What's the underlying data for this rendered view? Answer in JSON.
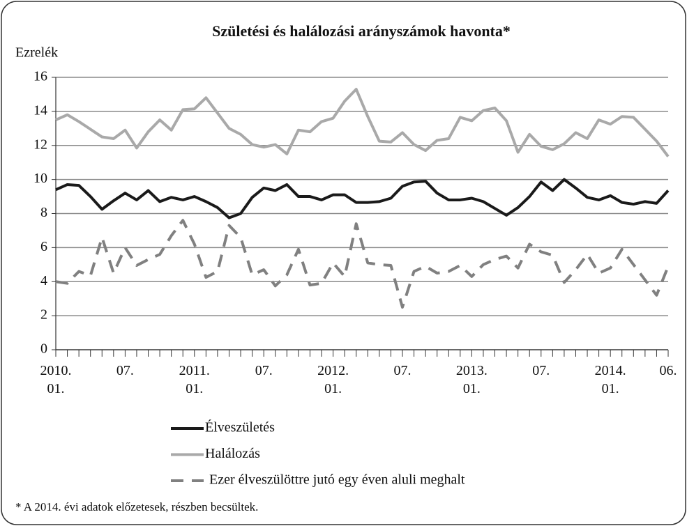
{
  "chart_data": {
    "type": "line",
    "title": "Születési és halálozási arányszámok havonta*",
    "y_label": "Ezrelék",
    "footnote": "* A 2014.  évi adatok előzetesek, részben becsültek.",
    "categories": [
      "2010.\n01.",
      null,
      null,
      null,
      null,
      null,
      "07.",
      null,
      null,
      null,
      null,
      null,
      "2011.\n01.",
      null,
      null,
      null,
      null,
      null,
      "07.",
      null,
      null,
      null,
      null,
      null,
      "2012.\n01.",
      null,
      null,
      null,
      null,
      null,
      "07.",
      null,
      null,
      null,
      null,
      null,
      "2013.\n01.",
      null,
      null,
      null,
      null,
      null,
      "07.",
      null,
      null,
      null,
      null,
      null,
      "2014.\n01.",
      null,
      null,
      null,
      null,
      "06."
    ],
    "series": [
      {
        "name": "Élveszületés",
        "color": "#1a1a1a",
        "dashed": false,
        "values": [
          9.4,
          9.7,
          9.65,
          9.0,
          8.25,
          8.75,
          9.2,
          8.8,
          9.35,
          8.7,
          8.95,
          8.8,
          9.0,
          8.7,
          8.35,
          7.75,
          8.0,
          8.95,
          9.5,
          9.35,
          9.7,
          9.0,
          9.0,
          8.8,
          9.1,
          9.1,
          8.65,
          8.65,
          8.7,
          8.9,
          9.6,
          9.85,
          9.9,
          9.2,
          8.8,
          8.8,
          8.9,
          8.7,
          8.3,
          7.9,
          8.35,
          9.0,
          9.85,
          9.35,
          10.0,
          9.5,
          8.95,
          8.8,
          9.05,
          8.65,
          8.55,
          8.7,
          8.6,
          9.35
        ]
      },
      {
        "name": "Halálozás",
        "color": "#a9a9a9",
        "dashed": false,
        "values": [
          13.5,
          13.8,
          13.4,
          12.95,
          12.5,
          12.4,
          12.9,
          11.85,
          12.8,
          13.5,
          12.9,
          14.1,
          14.15,
          14.8,
          13.9,
          13.0,
          12.65,
          12.05,
          11.9,
          12.05,
          11.5,
          12.9,
          12.8,
          13.4,
          13.6,
          14.6,
          15.3,
          13.7,
          12.25,
          12.2,
          12.75,
          12.05,
          11.7,
          12.3,
          12.4,
          13.65,
          13.45,
          14.05,
          14.2,
          13.45,
          11.6,
          12.65,
          11.95,
          11.75,
          12.1,
          12.75,
          12.4,
          13.5,
          13.25,
          13.7,
          13.65,
          12.95,
          12.25,
          11.35
        ]
      },
      {
        "name": "Ezer élveszülöttre jutó egy éven aluli meghalt",
        "color": "#808080",
        "dashed": true,
        "values": [
          4.0,
          3.9,
          4.6,
          4.35,
          6.6,
          4.5,
          6.0,
          4.95,
          5.3,
          5.6,
          6.7,
          7.6,
          6.2,
          4.25,
          4.6,
          7.3,
          6.6,
          4.4,
          4.7,
          3.75,
          4.4,
          5.9,
          3.8,
          3.9,
          5.1,
          4.3,
          7.4,
          5.1,
          5.0,
          4.95,
          2.5,
          4.6,
          4.9,
          4.5,
          4.6,
          4.95,
          4.3,
          5.0,
          5.3,
          5.5,
          4.8,
          6.2,
          5.75,
          5.55,
          3.95,
          4.7,
          5.6,
          4.5,
          4.8,
          5.9,
          5.0,
          4.1,
          3.2,
          4.9
        ]
      }
    ],
    "ylim": [
      0,
      16
    ],
    "yticks": [
      0,
      2,
      4,
      6,
      8,
      10,
      12,
      14,
      16
    ],
    "grid": true,
    "legend": "bottom"
  }
}
